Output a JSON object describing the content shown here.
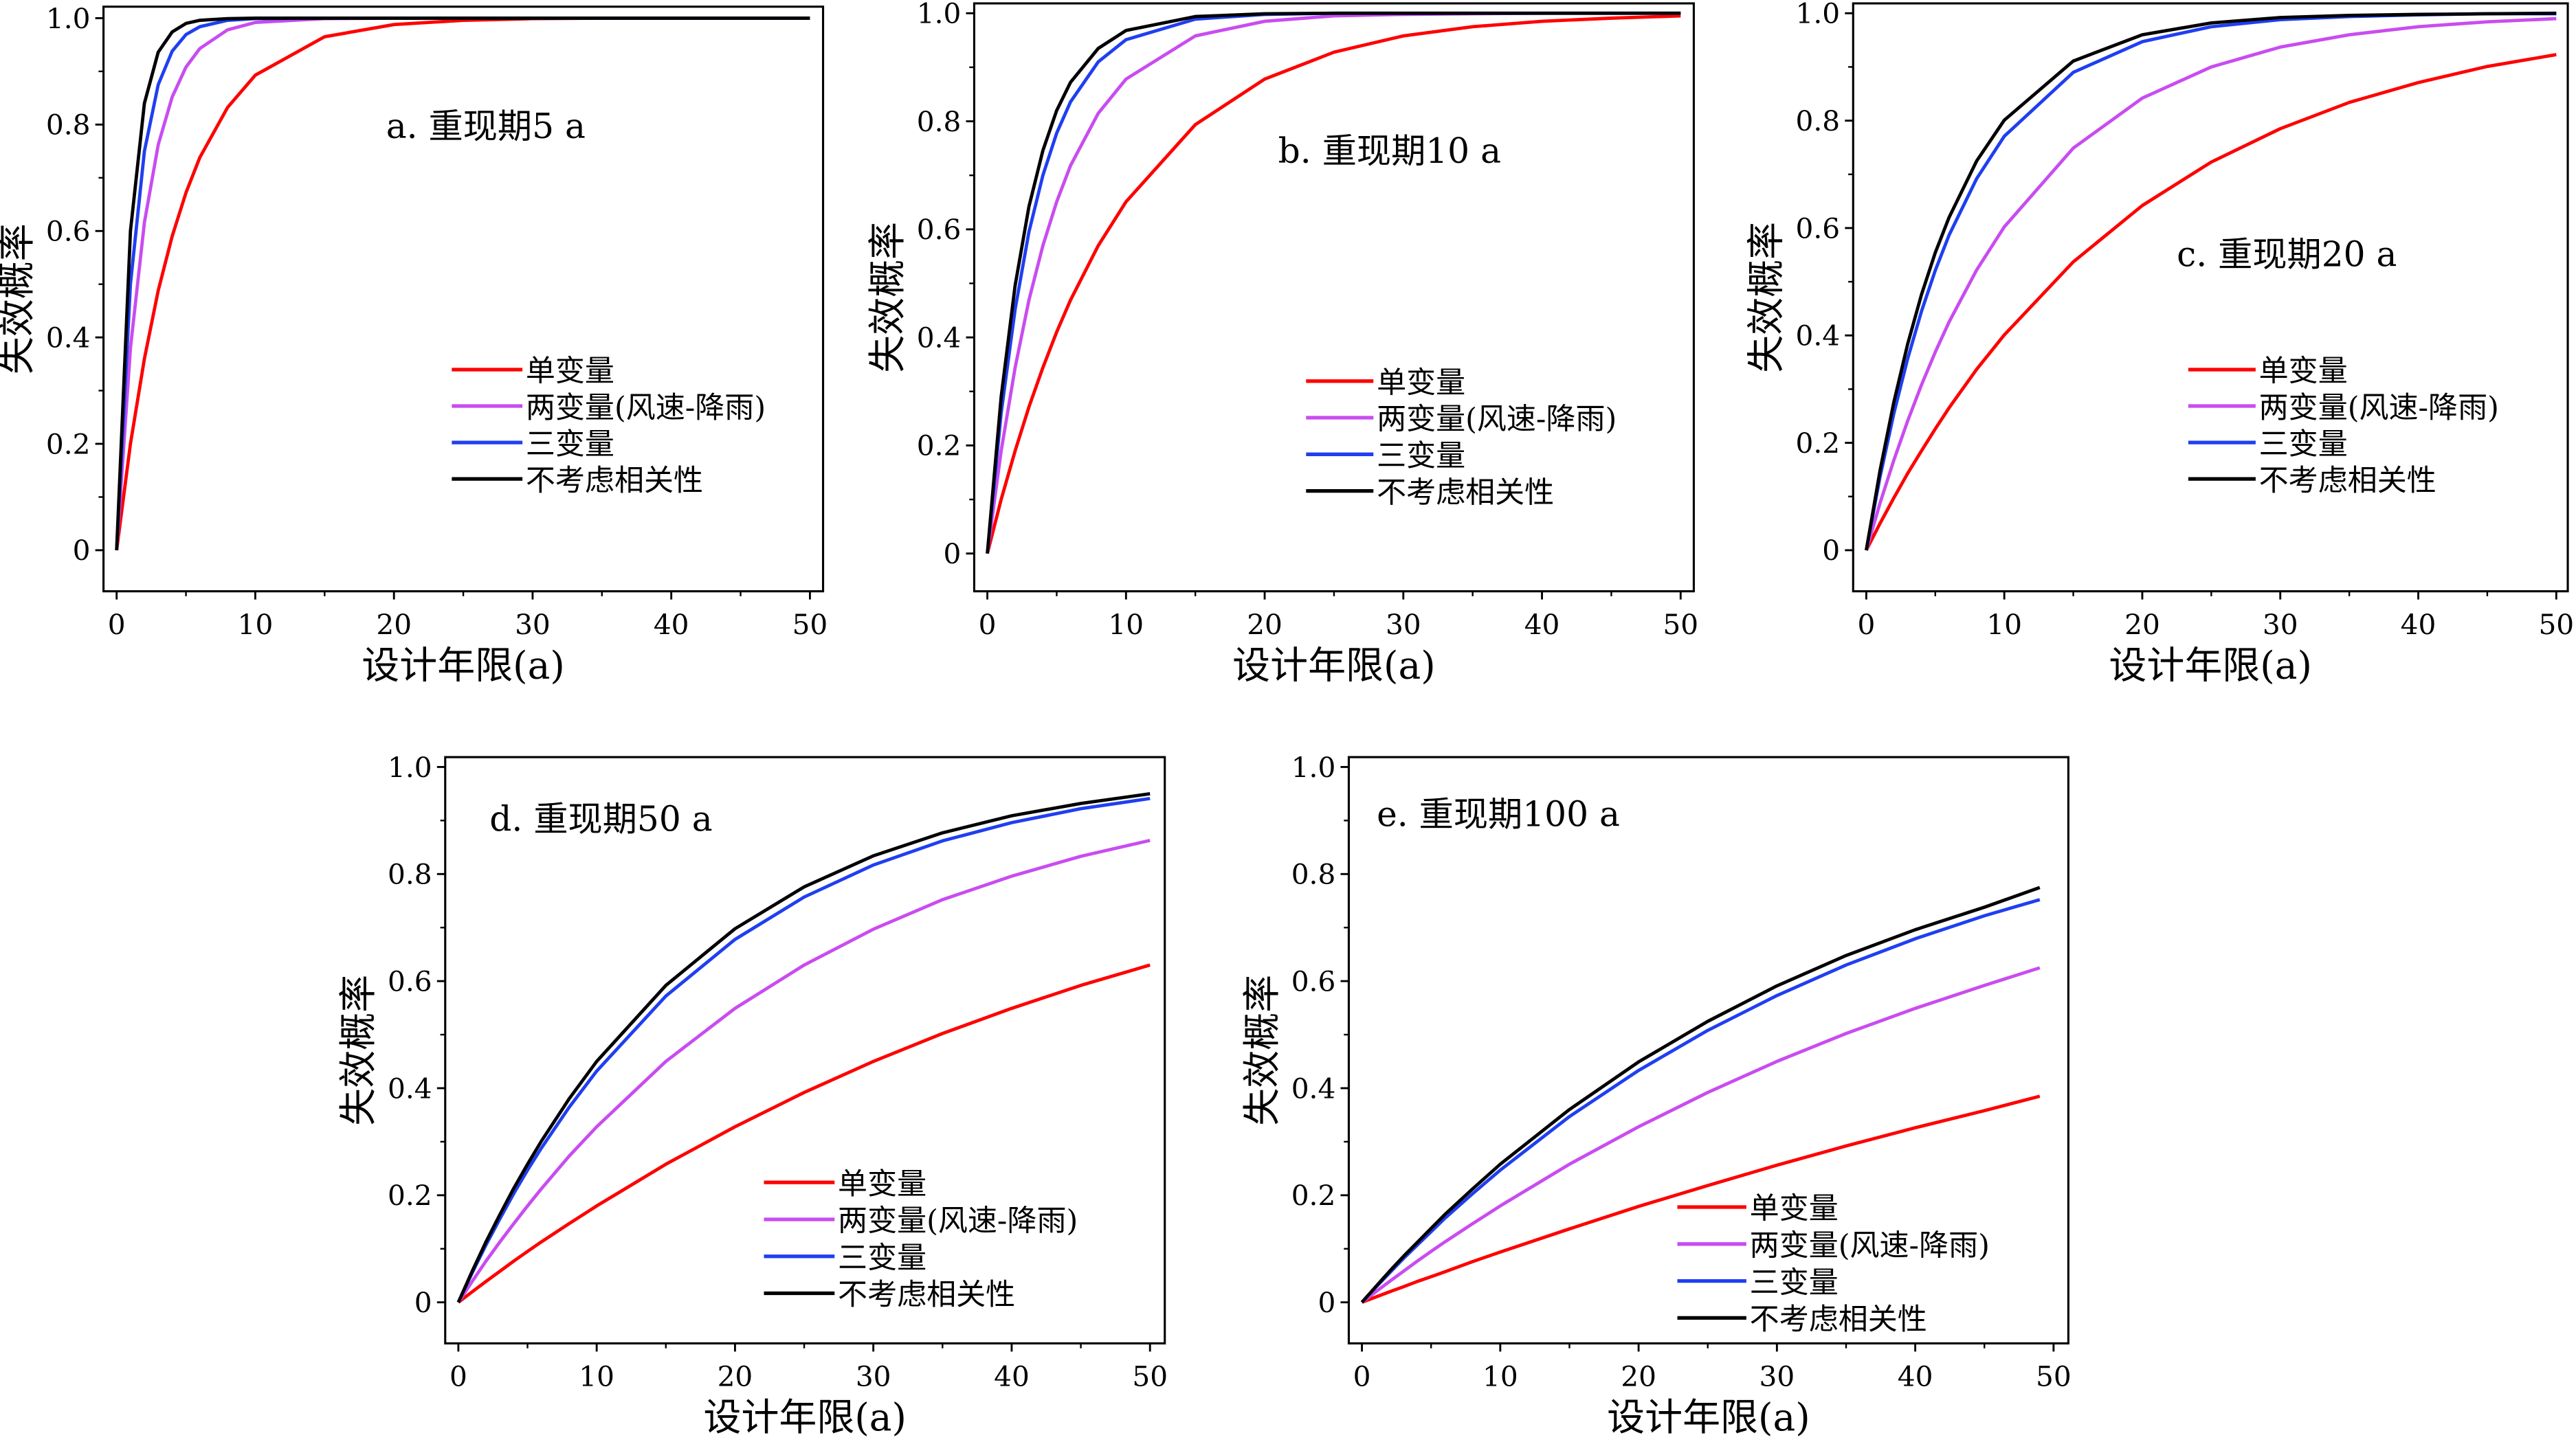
{
  "chart_data": [
    {
      "type": "line",
      "title": "a. 重现期5 a",
      "xlabel": "设计年限(a)",
      "ylabel": "失效概率",
      "xlim": [
        0,
        50
      ],
      "ylim": [
        0,
        1.0
      ],
      "xticks": [
        "0",
        "10",
        "20",
        "30",
        "40",
        "50"
      ],
      "yticks": [
        "0",
        "0.2",
        "0.4",
        "0.6",
        "0.8",
        "1.0"
      ],
      "grid": false,
      "legend": "center-right",
      "x": [
        0,
        1,
        2,
        3,
        4,
        5,
        6,
        8,
        10,
        15,
        20,
        25,
        30,
        35,
        40,
        45,
        50
      ],
      "series": [
        {
          "name": "单变量",
          "color": "#ff0000",
          "values": [
            0,
            0.2,
            0.36,
            0.488,
            0.59,
            0.672,
            0.738,
            0.832,
            0.893,
            0.965,
            0.988,
            0.996,
            0.999,
            1,
            1,
            1,
            1
          ]
        },
        {
          "name": "两变量(风速-降雨)",
          "color": "#c94cf0",
          "values": [
            0,
            0.38,
            0.616,
            0.762,
            0.852,
            0.908,
            0.943,
            0.978,
            0.992,
            0.999,
            1,
            1,
            1,
            1,
            1,
            1,
            1
          ]
        },
        {
          "name": "三变量",
          "color": "#1f3ff0",
          "values": [
            0,
            0.5,
            0.75,
            0.875,
            0.938,
            0.969,
            0.984,
            0.996,
            0.999,
            1,
            1,
            1,
            1,
            1,
            1,
            1,
            1
          ]
        },
        {
          "name": "不考虑相关性",
          "color": "#000000",
          "values": [
            0,
            0.6,
            0.84,
            0.936,
            0.974,
            0.99,
            0.996,
            0.999,
            1,
            1,
            1,
            1,
            1,
            1,
            1,
            1,
            1
          ]
        }
      ]
    },
    {
      "type": "line",
      "title": "b. 重现期10 a",
      "xlabel": "设计年限(a)",
      "ylabel": "失效概率",
      "xlim": [
        0,
        50
      ],
      "ylim": [
        0,
        1.0
      ],
      "xticks": [
        "0",
        "10",
        "20",
        "30",
        "40",
        "50"
      ],
      "yticks": [
        "0",
        "0.2",
        "0.4",
        "0.6",
        "0.8",
        "1.0"
      ],
      "grid": false,
      "legend": "center-right",
      "x": [
        0,
        1,
        2,
        3,
        4,
        5,
        6,
        8,
        10,
        15,
        20,
        25,
        30,
        35,
        40,
        45,
        50
      ],
      "series": [
        {
          "name": "单变量",
          "color": "#ff0000",
          "values": [
            0,
            0.1,
            0.19,
            0.271,
            0.344,
            0.41,
            0.469,
            0.57,
            0.651,
            0.794,
            0.878,
            0.928,
            0.958,
            0.975,
            0.985,
            0.991,
            0.995
          ]
        },
        {
          "name": "两变量(风速-降雨)",
          "color": "#c94cf0",
          "values": [
            0,
            0.19,
            0.344,
            0.469,
            0.57,
            0.651,
            0.718,
            0.815,
            0.878,
            0.958,
            0.985,
            0.995,
            0.998,
            0.999,
            1,
            1,
            1
          ]
        },
        {
          "name": "三变量",
          "color": "#1f3ff0",
          "values": [
            0,
            0.26,
            0.452,
            0.595,
            0.7,
            0.778,
            0.836,
            0.91,
            0.951,
            0.989,
            0.998,
            1,
            1,
            1,
            1,
            1,
            1
          ]
        },
        {
          "name": "不考虑相关性",
          "color": "#000000",
          "values": [
            0,
            0.29,
            0.496,
            0.642,
            0.746,
            0.82,
            0.872,
            0.935,
            0.968,
            0.994,
            0.999,
            1,
            1,
            1,
            1,
            1,
            1
          ]
        }
      ]
    },
    {
      "type": "line",
      "title": "c. 重现期20 a",
      "xlabel": "设计年限(a)",
      "ylabel": "失效概率",
      "xlim": [
        0,
        50
      ],
      "ylim": [
        0,
        1.0
      ],
      "xticks": [
        "0",
        "10",
        "20",
        "30",
        "40",
        "50"
      ],
      "yticks": [
        "0",
        "0.2",
        "0.4",
        "0.6",
        "0.8",
        "1.0"
      ],
      "grid": false,
      "legend": "center-right",
      "x": [
        0,
        1,
        2,
        3,
        4,
        5,
        6,
        8,
        10,
        15,
        20,
        25,
        30,
        35,
        40,
        45,
        50
      ],
      "series": [
        {
          "name": "单变量",
          "color": "#ff0000",
          "values": [
            0,
            0.05,
            0.0975,
            0.143,
            0.185,
            0.226,
            0.265,
            0.337,
            0.401,
            0.537,
            0.642,
            0.723,
            0.785,
            0.834,
            0.871,
            0.901,
            0.923
          ]
        },
        {
          "name": "两变量(风速-降雨)",
          "color": "#c94cf0",
          "values": [
            0,
            0.088,
            0.168,
            0.241,
            0.308,
            0.369,
            0.425,
            0.522,
            0.602,
            0.749,
            0.842,
            0.9,
            0.937,
            0.96,
            0.975,
            0.984,
            0.99
          ]
        },
        {
          "name": "三变量",
          "color": "#1f3ff0",
          "values": [
            0,
            0.137,
            0.255,
            0.357,
            0.445,
            0.521,
            0.587,
            0.692,
            0.771,
            0.89,
            0.947,
            0.975,
            0.988,
            0.994,
            0.997,
            0.999,
            0.999
          ]
        },
        {
          "name": "不考虑相关性",
          "color": "#000000",
          "values": [
            0,
            0.149,
            0.276,
            0.384,
            0.476,
            0.554,
            0.62,
            0.725,
            0.801,
            0.911,
            0.96,
            0.982,
            0.992,
            0.996,
            0.998,
            0.999,
            1
          ]
        }
      ]
    },
    {
      "type": "line",
      "title": "d. 重现期50 a",
      "xlabel": "设计年限(a)",
      "ylabel": "失效概率",
      "xlim": [
        0,
        50
      ],
      "ylim": [
        0,
        1.0
      ],
      "xticks": [
        "0",
        "10",
        "20",
        "30",
        "40",
        "50"
      ],
      "yticks": [
        "0",
        "0.2",
        "0.4",
        "0.6",
        "0.8",
        "1.0"
      ],
      "grid": false,
      "legend": "bottom-right",
      "x": [
        0,
        1,
        2,
        3,
        4,
        5,
        6,
        8,
        10,
        15,
        20,
        25,
        30,
        35,
        40,
        45,
        50
      ],
      "series": [
        {
          "name": "单变量",
          "color": "#ff0000",
          "values": [
            0,
            0.0197,
            0.039,
            0.058,
            0.077,
            0.095,
            0.113,
            0.147,
            0.18,
            0.258,
            0.328,
            0.392,
            0.45,
            0.502,
            0.549,
            0.592,
            0.63
          ]
        },
        {
          "name": "两变量(风速-降雨)",
          "color": "#c94cf0",
          "values": [
            0,
            0.039,
            0.077,
            0.113,
            0.147,
            0.18,
            0.212,
            0.273,
            0.328,
            0.45,
            0.549,
            0.63,
            0.697,
            0.752,
            0.796,
            0.833,
            0.863
          ]
        },
        {
          "name": "三变量",
          "color": "#1f3ff0",
          "values": [
            0,
            0.055,
            0.107,
            0.156,
            0.203,
            0.247,
            0.288,
            0.364,
            0.432,
            0.572,
            0.678,
            0.757,
            0.817,
            0.862,
            0.896,
            0.922,
            0.941
          ]
        },
        {
          "name": "不考虑相关性",
          "color": "#000000",
          "values": [
            0,
            0.058,
            0.113,
            0.164,
            0.213,
            0.258,
            0.301,
            0.38,
            0.45,
            0.592,
            0.698,
            0.776,
            0.834,
            0.877,
            0.909,
            0.932,
            0.95
          ]
        }
      ]
    },
    {
      "type": "line",
      "title": "e. 重现期100 a",
      "xlabel": "设计年限(a)",
      "ylabel": "失效概率",
      "xlim": [
        0,
        50
      ],
      "ylim": [
        0,
        1.0
      ],
      "xticks": [
        "0",
        "10",
        "20",
        "30",
        "40",
        "50"
      ],
      "yticks": [
        "0",
        "0.2",
        "0.4",
        "0.6",
        "0.8",
        "1.0"
      ],
      "grid": false,
      "legend": "bottom-right",
      "x": [
        0,
        1,
        2,
        3,
        4,
        5,
        6,
        8,
        10,
        15,
        20,
        25,
        30,
        35,
        40,
        45,
        49
      ],
      "series": [
        {
          "name": "单变量",
          "color": "#ff0000",
          "values": [
            0,
            0.0098,
            0.0195,
            0.029,
            0.039,
            0.048,
            0.057,
            0.076,
            0.094,
            0.137,
            0.179,
            0.218,
            0.256,
            0.292,
            0.326,
            0.358,
            0.385
          ]
        },
        {
          "name": "两变量(风速-降雨)",
          "color": "#c94cf0",
          "values": [
            0,
            0.0197,
            0.039,
            0.058,
            0.077,
            0.095,
            0.113,
            0.147,
            0.18,
            0.258,
            0.328,
            0.392,
            0.45,
            0.502,
            0.549,
            0.592,
            0.625
          ]
        },
        {
          "name": "三变量",
          "color": "#1f3ff0",
          "values": [
            0,
            0.028,
            0.055,
            0.082,
            0.107,
            0.132,
            0.157,
            0.203,
            0.247,
            0.347,
            0.433,
            0.508,
            0.573,
            0.63,
            0.679,
            0.722,
            0.752
          ]
        },
        {
          "name": "不考虑相关性",
          "color": "#000000",
          "values": [
            0,
            0.029,
            0.058,
            0.086,
            0.112,
            0.138,
            0.164,
            0.212,
            0.258,
            0.36,
            0.449,
            0.525,
            0.591,
            0.648,
            0.696,
            0.738,
            0.775
          ]
        }
      ]
    }
  ]
}
